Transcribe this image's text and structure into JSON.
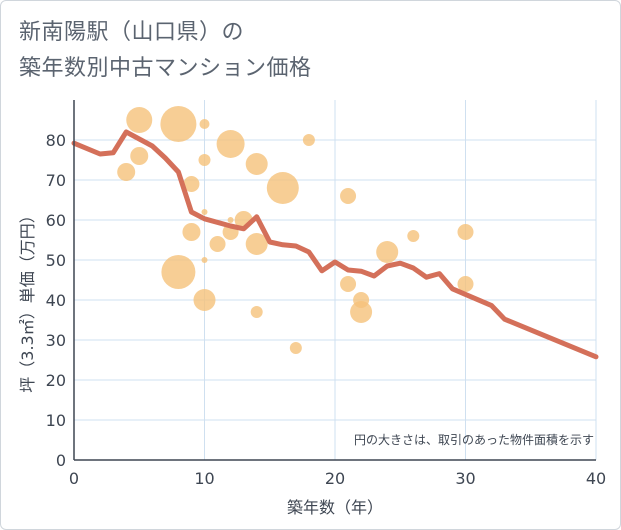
{
  "title_lines": [
    "新南陽駅（山口県）の",
    "築年数別中古マンション価格"
  ],
  "chart_data": {
    "type": "scatter",
    "xlabel": "築年数（年）",
    "ylabel": "坪（3.3㎡）単価（万円）",
    "xlim": [
      0,
      40
    ],
    "ylim": [
      0,
      90
    ],
    "x_ticks": [
      0,
      10,
      20,
      30,
      40
    ],
    "y_ticks": [
      0,
      10,
      20,
      30,
      40,
      50,
      60,
      70,
      80
    ],
    "grid": true,
    "note": "円の大きさは、取引のあった物件面積を示す",
    "colors": {
      "bubble": "#f5c27a",
      "line": "#d4705a",
      "grid": "#cfe0f0",
      "axis": "#3e4652"
    },
    "bubbles": [
      {
        "x": 4,
        "y": 72,
        "size": 9
      },
      {
        "x": 5,
        "y": 85,
        "size": 13
      },
      {
        "x": 5,
        "y": 76,
        "size": 9
      },
      {
        "x": 8,
        "y": 84,
        "size": 18
      },
      {
        "x": 8,
        "y": 47,
        "size": 17
      },
      {
        "x": 9,
        "y": 69,
        "size": 8
      },
      {
        "x": 9,
        "y": 57,
        "size": 9
      },
      {
        "x": 10,
        "y": 84,
        "size": 5
      },
      {
        "x": 10,
        "y": 75,
        "size": 6
      },
      {
        "x": 10,
        "y": 62,
        "size": 3
      },
      {
        "x": 10,
        "y": 50,
        "size": 3
      },
      {
        "x": 10,
        "y": 40,
        "size": 11
      },
      {
        "x": 11,
        "y": 54,
        "size": 8
      },
      {
        "x": 12,
        "y": 79,
        "size": 14
      },
      {
        "x": 12,
        "y": 60,
        "size": 3
      },
      {
        "x": 12,
        "y": 57,
        "size": 8
      },
      {
        "x": 13,
        "y": 60,
        "size": 9
      },
      {
        "x": 14,
        "y": 74,
        "size": 11
      },
      {
        "x": 14,
        "y": 54,
        "size": 11
      },
      {
        "x": 14,
        "y": 37,
        "size": 6
      },
      {
        "x": 16,
        "y": 68,
        "size": 16
      },
      {
        "x": 17,
        "y": 28,
        "size": 6
      },
      {
        "x": 18,
        "y": 80,
        "size": 6
      },
      {
        "x": 21,
        "y": 66,
        "size": 8
      },
      {
        "x": 21,
        "y": 44,
        "size": 8
      },
      {
        "x": 22,
        "y": 40,
        "size": 8
      },
      {
        "x": 22,
        "y": 37,
        "size": 11
      },
      {
        "x": 24,
        "y": 52,
        "size": 11
      },
      {
        "x": 26,
        "y": 56,
        "size": 6
      },
      {
        "x": 30,
        "y": 57,
        "size": 8
      },
      {
        "x": 30,
        "y": 44,
        "size": 8
      }
    ],
    "trend": [
      [
        0,
        79.2
      ],
      [
        2,
        76.5
      ],
      [
        3,
        76.8
      ],
      [
        4,
        82
      ],
      [
        6,
        78.5
      ],
      [
        7,
        75.5
      ],
      [
        8,
        72
      ],
      [
        9,
        62
      ],
      [
        10,
        60.3
      ],
      [
        12,
        58.5
      ],
      [
        13,
        57.8
      ],
      [
        14,
        60.8
      ],
      [
        15,
        54.5
      ],
      [
        16,
        53.8
      ],
      [
        17,
        53.5
      ],
      [
        18,
        52
      ],
      [
        19,
        47.3
      ],
      [
        20,
        49.5
      ],
      [
        21,
        47.5
      ],
      [
        22,
        47.2
      ],
      [
        23,
        46
      ],
      [
        24,
        48.5
      ],
      [
        25,
        49.2
      ],
      [
        26,
        48
      ],
      [
        27,
        45.7
      ],
      [
        28,
        46.6
      ],
      [
        29,
        42.8
      ],
      [
        30,
        41.4
      ],
      [
        32,
        38.6
      ],
      [
        33,
        35.2
      ],
      [
        40,
        25.8
      ]
    ]
  }
}
